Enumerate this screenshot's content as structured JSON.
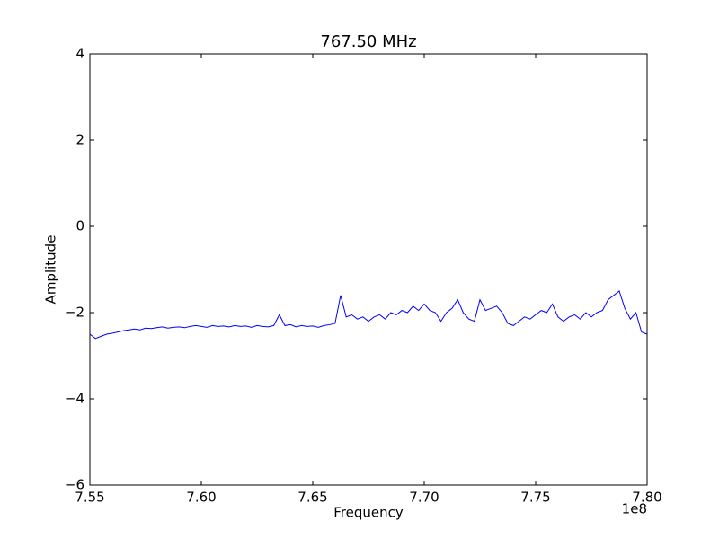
{
  "chart_data": {
    "type": "line",
    "title": "767.50 MHz",
    "x_label": "Frequency",
    "y_label": "Amplitude",
    "x_offset_label": "1e8",
    "xlim": [
      755000000,
      780000000
    ],
    "xticks": [
      {
        "value": 755000000,
        "label": "7.55"
      },
      {
        "value": 760000000,
        "label": "7.60"
      },
      {
        "value": 765000000,
        "label": "7.65"
      },
      {
        "value": 770000000,
        "label": "7.70"
      },
      {
        "value": 775000000,
        "label": "7.75"
      },
      {
        "value": 780000000,
        "label": "7.80"
      }
    ],
    "ylim": [
      -6,
      4
    ],
    "yticks": [
      {
        "value": -6,
        "label": "−6"
      },
      {
        "value": -4,
        "label": "−4"
      },
      {
        "value": -2,
        "label": "−2"
      },
      0,
      2,
      4
    ],
    "x": [
      755000000,
      755250000,
      755500000,
      755750000,
      756000000,
      756250000,
      756500000,
      756750000,
      757000000,
      757250000,
      757500000,
      757750000,
      758000000,
      758250000,
      758500000,
      758750000,
      759000000,
      759250000,
      759500000,
      759750000,
      760000000,
      760250000,
      760500000,
      760750000,
      761000000,
      761250000,
      761500000,
      761750000,
      762000000,
      762250000,
      762500000,
      762750000,
      763000000,
      763250000,
      763500000,
      763750000,
      764000000,
      764250000,
      764500000,
      764750000,
      765000000,
      765250000,
      765500000,
      765750000,
      766000000,
      766250000,
      766500000,
      766750000,
      767000000,
      767250000,
      767500000,
      767750000,
      768000000,
      768250000,
      768500000,
      768750000,
      769000000,
      769250000,
      769500000,
      769750000,
      770000000,
      770250000,
      770500000,
      770750000,
      771000000,
      771250000,
      771500000,
      771750000,
      772000000,
      772250000,
      772500000,
      772750000,
      773000000,
      773250000,
      773500000,
      773750000,
      774000000,
      774250000,
      774500000,
      774750000,
      775000000,
      775250000,
      775500000,
      775750000,
      776000000,
      776250000,
      776500000,
      776750000,
      777000000,
      777250000,
      777500000,
      777750000,
      778000000,
      778250000,
      778500000,
      778750000,
      779000000,
      779250000,
      779500000,
      779750000,
      780000000
    ],
    "series": [
      {
        "color": "#0000ff",
        "values": [
          -2.5,
          -2.6,
          -2.55,
          -2.5,
          -2.48,
          -2.45,
          -2.42,
          -2.4,
          -2.38,
          -2.4,
          -2.36,
          -2.37,
          -2.35,
          -2.33,
          -2.36,
          -2.34,
          -2.33,
          -2.35,
          -2.32,
          -2.3,
          -2.32,
          -2.34,
          -2.3,
          -2.32,
          -2.31,
          -2.33,
          -2.3,
          -2.32,
          -2.31,
          -2.34,
          -2.3,
          -2.32,
          -2.33,
          -2.3,
          -2.05,
          -2.3,
          -2.28,
          -2.33,
          -2.3,
          -2.32,
          -2.31,
          -2.34,
          -2.3,
          -2.28,
          -2.25,
          -1.6,
          -2.1,
          -2.05,
          -2.15,
          -2.1,
          -2.2,
          -2.1,
          -2.05,
          -2.15,
          -2.0,
          -2.05,
          -1.95,
          -2.0,
          -1.85,
          -1.95,
          -1.8,
          -1.95,
          -2.0,
          -2.2,
          -2.0,
          -1.9,
          -1.7,
          -2.0,
          -2.15,
          -2.2,
          -1.7,
          -1.95,
          -1.9,
          -1.85,
          -2.0,
          -2.25,
          -2.3,
          -2.2,
          -2.1,
          -2.15,
          -2.05,
          -1.95,
          -2.0,
          -1.8,
          -2.1,
          -2.2,
          -2.1,
          -2.05,
          -2.15,
          -2.0,
          -2.1,
          -2.0,
          -1.95,
          -1.7,
          -1.6,
          -1.5,
          -1.9,
          -2.15,
          -2.0,
          -2.45,
          -2.5
        ]
      }
    ]
  }
}
